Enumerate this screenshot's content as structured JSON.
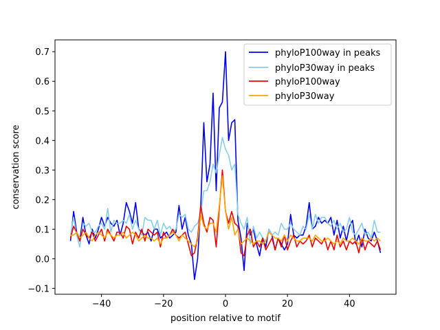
{
  "chart_data": {
    "type": "line",
    "title": "",
    "xlabel": "position relative to motif",
    "ylabel": "conservation score",
    "xlim": [
      -55,
      55
    ],
    "ylim": [
      -0.12,
      0.74
    ],
    "xticks": [
      -40,
      -20,
      0,
      20,
      40
    ],
    "xtick_labels": [
      "−40",
      "−20",
      "0",
      "20",
      "40"
    ],
    "yticks": [
      -0.1,
      0.0,
      0.1,
      0.2,
      0.3,
      0.4,
      0.5,
      0.6,
      0.7
    ],
    "ytick_labels": [
      "−0.1",
      "0.0",
      "0.1",
      "0.2",
      "0.3",
      "0.4",
      "0.5",
      "0.6",
      "0.7"
    ],
    "grid": false,
    "legend_position": "top-right",
    "x": [
      -50,
      -49,
      -48,
      -47,
      -46,
      -45,
      -44,
      -43,
      -42,
      -41,
      -40,
      -39,
      -38,
      -37,
      -36,
      -35,
      -34,
      -33,
      -32,
      -31,
      -30,
      -29,
      -28,
      -27,
      -26,
      -25,
      -24,
      -23,
      -22,
      -21,
      -20,
      -19,
      -18,
      -17,
      -16,
      -15,
      -14,
      -13,
      -12,
      -11,
      -10,
      -9,
      -8,
      -7,
      -6,
      -5,
      -4,
      -3,
      -2,
      -1,
      0,
      1,
      2,
      3,
      4,
      5,
      6,
      7,
      8,
      9,
      10,
      11,
      12,
      13,
      14,
      15,
      16,
      17,
      18,
      19,
      20,
      21,
      22,
      23,
      24,
      25,
      26,
      27,
      28,
      29,
      30,
      31,
      32,
      33,
      34,
      35,
      36,
      37,
      38,
      39,
      40,
      41,
      42,
      43,
      44,
      45,
      46,
      47,
      48,
      49,
      50
    ],
    "series": [
      {
        "name": "phyloP100way in peaks",
        "color": "#0000ee",
        "values": [
          0.06,
          0.16,
          0.09,
          0.06,
          0.14,
          0.08,
          0.05,
          0.1,
          0.07,
          0.1,
          0.14,
          0.11,
          0.14,
          0.12,
          0.11,
          0.13,
          0.08,
          0.12,
          0.19,
          0.16,
          0.12,
          0.19,
          0.1,
          0.09,
          0.08,
          0.09,
          0.06,
          0.1,
          0.1,
          0.07,
          0.08,
          0.09,
          0.07,
          0.08,
          0.09,
          0.18,
          0.1,
          0.14,
          0.08,
          0.05,
          -0.07,
          0.0,
          0.17,
          0.46,
          0.26,
          0.32,
          0.56,
          0.23,
          0.51,
          0.53,
          0.7,
          0.4,
          0.46,
          0.47,
          0.13,
          0.07,
          -0.04,
          0.12,
          0.08,
          0.1,
          0.05,
          0.01,
          0.07,
          0.04,
          0.1,
          0.08,
          0.03,
          0.07,
          0.05,
          0.03,
          0.05,
          0.15,
          0.08,
          0.07,
          0.08,
          0.08,
          0.11,
          0.19,
          0.1,
          0.11,
          0.14,
          0.12,
          0.13,
          0.12,
          0.14,
          0.08,
          0.13,
          0.07,
          0.11,
          0.06,
          0.11,
          0.13,
          0.05,
          0.08,
          0.04,
          0.1,
          0.07,
          0.06,
          0.09,
          0.06,
          0.02
        ]
      },
      {
        "name": "phyloP30way in peaks",
        "color": "#87ceeb",
        "values": [
          0.08,
          0.14,
          0.08,
          0.04,
          0.12,
          0.11,
          0.12,
          0.09,
          0.09,
          0.11,
          0.12,
          0.1,
          0.17,
          0.09,
          0.13,
          0.12,
          0.12,
          0.13,
          0.12,
          0.15,
          0.1,
          0.13,
          0.1,
          0.08,
          0.14,
          0.13,
          0.13,
          0.1,
          0.13,
          0.08,
          0.12,
          0.1,
          0.11,
          0.09,
          0.1,
          0.15,
          0.14,
          0.15,
          0.1,
          0.09,
          0.11,
          0.12,
          0.15,
          0.23,
          0.23,
          0.26,
          0.32,
          0.29,
          0.35,
          0.41,
          0.37,
          0.35,
          0.3,
          0.32,
          0.15,
          0.12,
          0.1,
          0.14,
          0.05,
          0.11,
          0.07,
          0.09,
          0.07,
          0.06,
          0.1,
          0.08,
          0.09,
          0.08,
          0.12,
          0.1,
          0.1,
          0.12,
          0.1,
          0.09,
          0.08,
          0.11,
          0.1,
          0.15,
          0.1,
          0.15,
          0.12,
          0.14,
          0.14,
          0.12,
          0.11,
          0.13,
          0.1,
          0.12,
          0.09,
          0.1,
          0.14,
          0.09,
          0.08,
          0.1,
          0.12,
          0.08,
          0.09,
          0.07,
          0.13,
          0.09,
          0.09
        ]
      },
      {
        "name": "phyloP100way",
        "color": "#ee0000",
        "values": [
          0.07,
          0.11,
          0.09,
          0.06,
          0.1,
          0.08,
          0.07,
          0.09,
          0.06,
          0.08,
          0.1,
          0.06,
          0.1,
          0.08,
          0.06,
          0.09,
          0.09,
          0.07,
          0.11,
          0.1,
          0.05,
          0.09,
          0.07,
          0.1,
          0.06,
          0.1,
          0.09,
          0.08,
          0.09,
          0.04,
          0.09,
          0.07,
          0.08,
          0.1,
          0.08,
          0.07,
          0.08,
          0.09,
          0.05,
          0.01,
          0.02,
          0.07,
          0.18,
          0.12,
          0.09,
          0.14,
          0.13,
          0.04,
          0.17,
          0.3,
          0.16,
          0.12,
          0.16,
          0.12,
          0.11,
          0.02,
          0.01,
          0.08,
          0.1,
          0.04,
          0.06,
          0.04,
          0.07,
          0.03,
          0.05,
          0.07,
          0.03,
          0.07,
          0.04,
          0.08,
          0.03,
          0.06,
          0.08,
          0.04,
          0.06,
          0.05,
          0.06,
          0.08,
          0.04,
          0.07,
          0.06,
          0.05,
          0.07,
          0.03,
          0.06,
          0.03,
          0.08,
          0.04,
          0.06,
          0.03,
          0.06,
          0.05,
          0.06,
          0.02,
          0.07,
          0.03,
          0.06,
          0.05,
          0.04,
          0.06,
          0.03
        ]
      },
      {
        "name": "phyloP30way",
        "color": "#ffa500",
        "values": [
          0.08,
          0.08,
          0.09,
          0.07,
          0.08,
          0.09,
          0.07,
          0.06,
          0.08,
          0.09,
          0.08,
          0.07,
          0.09,
          0.08,
          0.07,
          0.08,
          0.08,
          0.09,
          0.07,
          0.08,
          0.09,
          0.08,
          0.06,
          0.07,
          0.08,
          0.07,
          0.07,
          0.06,
          0.07,
          0.05,
          0.07,
          0.07,
          0.08,
          0.09,
          0.08,
          0.06,
          0.08,
          0.07,
          0.06,
          0.05,
          0.04,
          0.06,
          0.15,
          0.11,
          0.1,
          0.12,
          0.12,
          0.09,
          0.18,
          0.28,
          0.16,
          0.1,
          0.14,
          0.08,
          0.1,
          0.05,
          0.06,
          0.07,
          0.06,
          0.05,
          0.06,
          0.06,
          0.05,
          0.06,
          0.09,
          0.08,
          0.07,
          0.07,
          0.06,
          0.08,
          0.06,
          0.08,
          0.07,
          0.06,
          0.06,
          0.07,
          0.07,
          0.07,
          0.06,
          0.08,
          0.07,
          0.06,
          0.06,
          0.07,
          0.06,
          0.05,
          0.06,
          0.05,
          0.07,
          0.06,
          0.06,
          0.07,
          0.06,
          0.05,
          0.07,
          0.06,
          0.06,
          0.07,
          0.06,
          0.07,
          0.06
        ]
      }
    ]
  }
}
